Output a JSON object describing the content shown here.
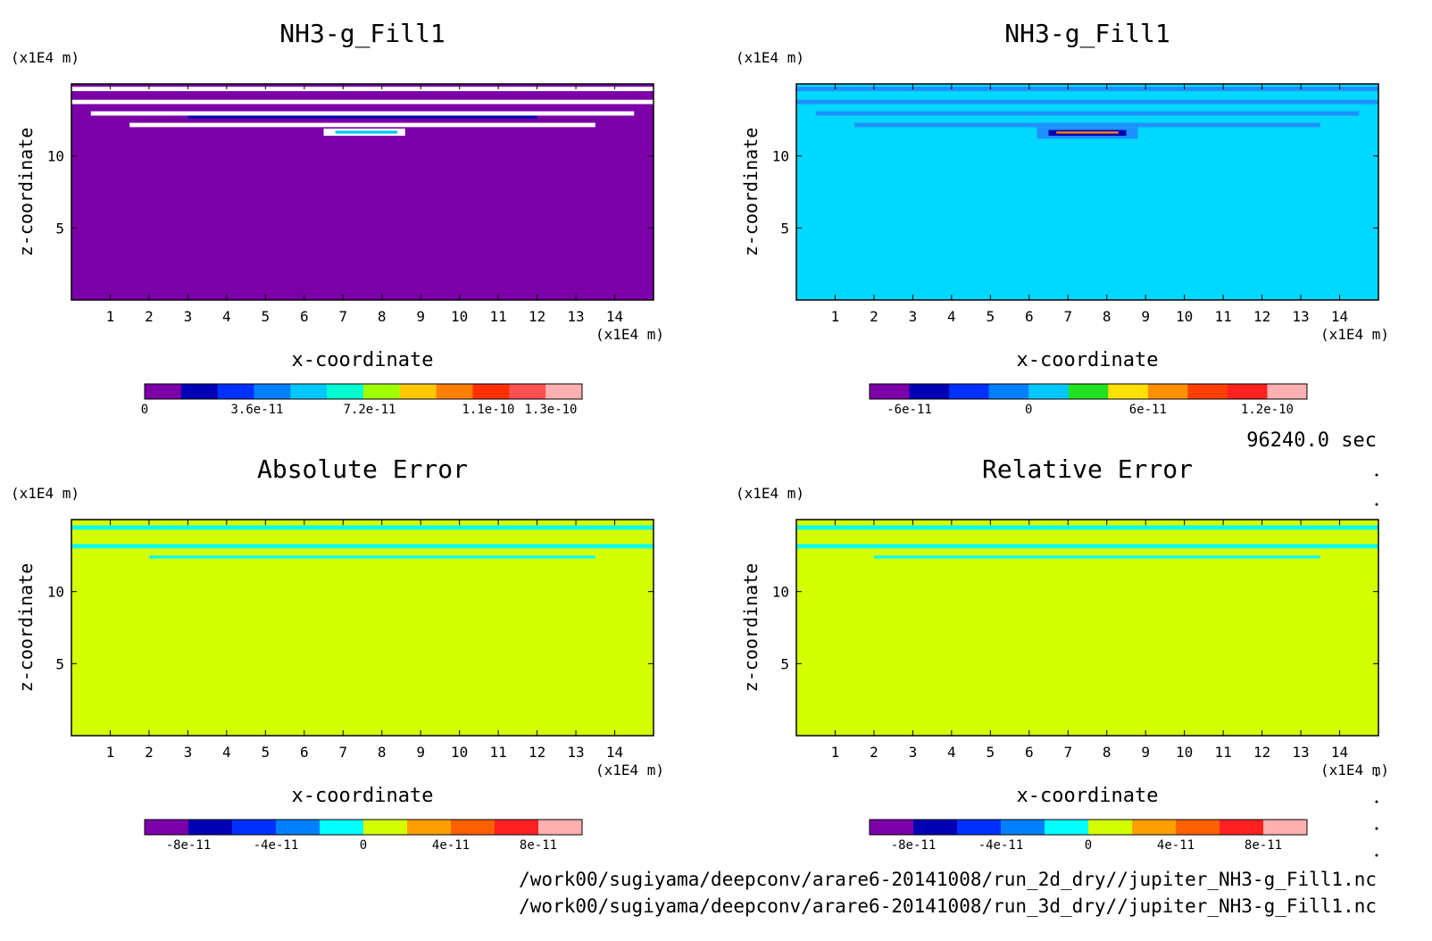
{
  "time_label": "96240.0 sec",
  "footer_lines": [
    "/work00/sugiyama/deepconv/arare6-20141008/run_2d_dry//jupiter_NH3-g_Fill1.nc",
    "/work00/sugiyama/deepconv/arare6-20141008/run_3d_dry//jupiter_NH3-g_Fill1.nc"
  ],
  "chart_data": [
    {
      "type": "heatmap",
      "title": "NH3-g_Fill1",
      "xlabel": "x-coordinate",
      "ylabel": "z-coordinate",
      "x_unit": "(x1E4 m)",
      "y_unit": "(x1E4 m)",
      "xlim": [
        0,
        15
      ],
      "ylim": [
        0,
        15
      ],
      "x_ticks": [
        1,
        2,
        3,
        4,
        5,
        6,
        7,
        8,
        9,
        10,
        11,
        12,
        13,
        14
      ],
      "y_ticks": [
        5,
        10
      ],
      "background_color": "#7b00a8",
      "colorbar": {
        "colors": [
          "#7b00a8",
          "#0000b4",
          "#0030ff",
          "#0080ff",
          "#00c8ff",
          "#00ffd0",
          "#a0ff00",
          "#ffc800",
          "#ff8000",
          "#ff3000",
          "#ff5050",
          "#ffb0b0"
        ],
        "tick_labels": [
          "0",
          "3.6e-11",
          "7.2e-11",
          "1.1e-10",
          "1.3e-10"
        ],
        "tick_values": [
          0,
          3.6e-11,
          7.2e-11,
          1.1e-10,
          1.3e-10
        ],
        "range": [
          0,
          1.4e-10
        ]
      },
      "features": [
        {
          "kind": "band",
          "x": [
            0,
            15
          ],
          "y": [
            14.5,
            14.8
          ],
          "color": "#ffffff"
        },
        {
          "kind": "band",
          "x": [
            0,
            15
          ],
          "y": [
            13.6,
            13.9
          ],
          "color": "#ffffff"
        },
        {
          "kind": "band",
          "x": [
            0.5,
            14.5
          ],
          "y": [
            12.8,
            13.1
          ],
          "color": "#ffffff"
        },
        {
          "kind": "band",
          "x": [
            1.5,
            13.5
          ],
          "y": [
            12.0,
            12.3
          ],
          "color": "#ffffff"
        },
        {
          "kind": "band",
          "x": [
            3,
            12
          ],
          "y": [
            12.6,
            12.8
          ],
          "color": "#0000b4"
        },
        {
          "kind": "band",
          "x": [
            6.5,
            8.6
          ],
          "y": [
            11.4,
            11.9
          ],
          "color": "#ffffff"
        },
        {
          "kind": "band",
          "x": [
            6.8,
            8.4
          ],
          "y": [
            11.55,
            11.75
          ],
          "color": "#00c8ff"
        }
      ]
    },
    {
      "type": "heatmap",
      "title": "NH3-g_Fill1",
      "xlabel": "x-coordinate",
      "ylabel": "z-coordinate",
      "x_unit": "(x1E4 m)",
      "y_unit": "(x1E4 m)",
      "xlim": [
        0,
        15
      ],
      "ylim": [
        0,
        15
      ],
      "x_ticks": [
        1,
        2,
        3,
        4,
        5,
        6,
        7,
        8,
        9,
        10,
        11,
        12,
        13,
        14
      ],
      "y_ticks": [
        5,
        10
      ],
      "background_color": "#00d8ff",
      "colorbar": {
        "colors": [
          "#7b00a8",
          "#0000b4",
          "#0030ff",
          "#0080ff",
          "#00c8ff",
          "#20e020",
          "#ffe000",
          "#ff9000",
          "#ff4000",
          "#ff2020",
          "#ffb0b0"
        ],
        "tick_labels": [
          "-6e-11",
          "0",
          "6e-11",
          "1.2e-10"
        ],
        "tick_values": [
          -6e-11,
          0,
          6e-11,
          1.2e-10
        ],
        "range": [
          -8e-11,
          1.4e-10
        ]
      },
      "features": [
        {
          "kind": "band",
          "x": [
            0,
            15
          ],
          "y": [
            14.5,
            14.8
          ],
          "color": "#1e90ff"
        },
        {
          "kind": "band",
          "x": [
            0,
            15
          ],
          "y": [
            13.6,
            13.9
          ],
          "color": "#1e90ff"
        },
        {
          "kind": "band",
          "x": [
            0.5,
            14.5
          ],
          "y": [
            12.8,
            13.1
          ],
          "color": "#1e90ff"
        },
        {
          "kind": "band",
          "x": [
            1.5,
            13.5
          ],
          "y": [
            12.0,
            12.3
          ],
          "color": "#1e90ff"
        },
        {
          "kind": "band",
          "x": [
            6.2,
            8.8
          ],
          "y": [
            11.2,
            12.0
          ],
          "color": "#1e90ff"
        },
        {
          "kind": "band",
          "x": [
            6.5,
            8.5
          ],
          "y": [
            11.4,
            11.8
          ],
          "color": "#0000b4"
        },
        {
          "kind": "band",
          "x": [
            6.7,
            8.3
          ],
          "y": [
            11.55,
            11.7
          ],
          "color": "#ff8000"
        }
      ]
    },
    {
      "type": "heatmap",
      "title": "Absolute Error",
      "xlabel": "x-coordinate",
      "ylabel": "z-coordinate",
      "x_unit": "(x1E4 m)",
      "y_unit": "(x1E4 m)",
      "xlim": [
        0,
        15
      ],
      "ylim": [
        0,
        15
      ],
      "x_ticks": [
        1,
        2,
        3,
        4,
        5,
        6,
        7,
        8,
        9,
        10,
        11,
        12,
        13,
        14
      ],
      "y_ticks": [
        5,
        10
      ],
      "background_color": "#d4ff00",
      "colorbar": {
        "colors": [
          "#7b00a8",
          "#0000b4",
          "#0030ff",
          "#0080ff",
          "#00ffff",
          "#d4ff00",
          "#ffa000",
          "#ff6000",
          "#ff2020",
          "#ffb0b0"
        ],
        "tick_labels": [
          "-8e-11",
          "-4e-11",
          "0",
          "4e-11",
          "8e-11"
        ],
        "tick_values": [
          -8e-11,
          -4e-11,
          0,
          4e-11,
          8e-11
        ],
        "range": [
          -1e-10,
          1e-10
        ]
      },
      "features": [
        {
          "kind": "band",
          "x": [
            0,
            15
          ],
          "y": [
            14.3,
            14.6
          ],
          "color": "#00ffff"
        },
        {
          "kind": "band",
          "x": [
            0,
            15
          ],
          "y": [
            13.0,
            13.3
          ],
          "color": "#00ffff"
        },
        {
          "kind": "band",
          "x": [
            2,
            13.5
          ],
          "y": [
            12.3,
            12.5
          ],
          "color": "#00ffff"
        }
      ]
    },
    {
      "type": "heatmap",
      "title": "Relative Error",
      "xlabel": "x-coordinate",
      "ylabel": "z-coordinate",
      "x_unit": "(x1E4 m)",
      "y_unit": "(x1E4 m)",
      "xlim": [
        0,
        15
      ],
      "ylim": [
        0,
        15
      ],
      "x_ticks": [
        1,
        2,
        3,
        4,
        5,
        6,
        7,
        8,
        9,
        10,
        11,
        12,
        13,
        14
      ],
      "y_ticks": [
        5,
        10
      ],
      "background_color": "#d4ff00",
      "colorbar": {
        "colors": [
          "#7b00a8",
          "#0000b4",
          "#0030ff",
          "#0080ff",
          "#00ffff",
          "#d4ff00",
          "#ffa000",
          "#ff6000",
          "#ff2020",
          "#ffb0b0"
        ],
        "tick_labels": [
          "-8e-11",
          "-4e-11",
          "0",
          "4e-11",
          "8e-11"
        ],
        "tick_values": [
          -8e-11,
          -4e-11,
          0,
          4e-11,
          8e-11
        ],
        "range": [
          -1e-10,
          1e-10
        ]
      },
      "features": [
        {
          "kind": "band",
          "x": [
            0,
            15
          ],
          "y": [
            14.3,
            14.6
          ],
          "color": "#00ffff"
        },
        {
          "kind": "band",
          "x": [
            0,
            15
          ],
          "y": [
            13.0,
            13.3
          ],
          "color": "#00ffff"
        },
        {
          "kind": "band",
          "x": [
            2,
            13.5
          ],
          "y": [
            12.3,
            12.5
          ],
          "color": "#00ffff"
        }
      ]
    }
  ]
}
